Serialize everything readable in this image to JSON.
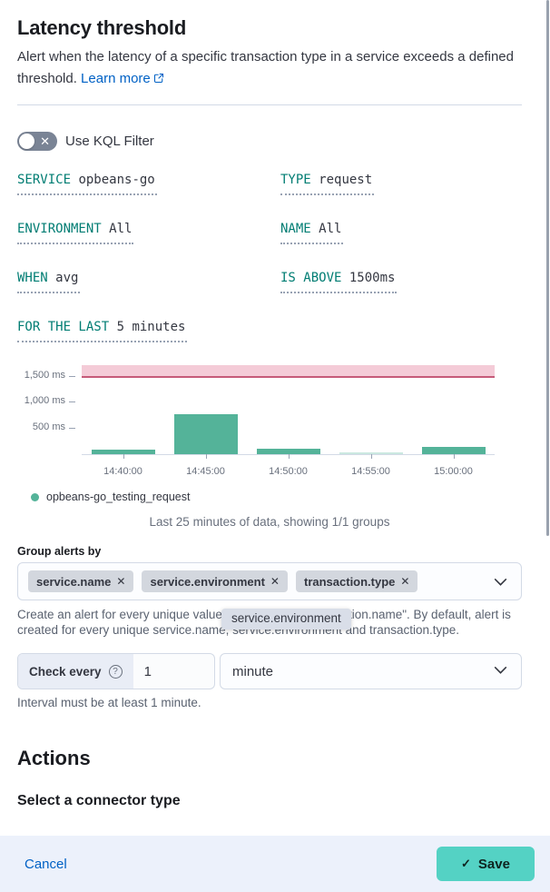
{
  "header": {
    "title": "Latency threshold",
    "description": "Alert when the latency of a specific transaction type in a service exceeds a defined threshold.",
    "learn_more_label": "Learn more"
  },
  "kql_filter": {
    "label": "Use KQL Filter",
    "enabled": false
  },
  "expressions": [
    {
      "label": "SERVICE",
      "value": "opbeans-go"
    },
    {
      "label": "TYPE",
      "value": "request"
    },
    {
      "label": "ENVIRONMENT",
      "value": "All"
    },
    {
      "label": "NAME",
      "value": "All"
    },
    {
      "label": "WHEN",
      "value": "avg"
    },
    {
      "label": "IS ABOVE",
      "value": "1500ms"
    },
    {
      "label": "FOR THE LAST",
      "value": "5 minutes"
    }
  ],
  "chart_data": {
    "type": "bar",
    "categories": [
      "14:40:00",
      "14:45:00",
      "14:50:00",
      "14:55:00",
      "15:00:00"
    ],
    "series": [
      {
        "name": "opbeans-go_testing_request",
        "values": [
          85,
          760,
          100,
          40,
          140
        ]
      }
    ],
    "muted_index": 3,
    "unit": "ms",
    "ylabel": "",
    "xlabel": "",
    "ylim": [
      0,
      1690
    ],
    "grid": false,
    "legend_position": "bottom",
    "threshold": {
      "value": 1500,
      "label": "1,500 ms"
    },
    "yticks": [
      {
        "value": 1500,
        "label": "1,500 ms"
      },
      {
        "value": 1000,
        "label": "1,000 ms"
      },
      {
        "value": 500,
        "label": "500 ms"
      }
    ],
    "colors": {
      "bar": "#54B399",
      "threshold_line": "#C65B79",
      "threshold_band": "#F4CBD7",
      "axis": "#D3DAE6",
      "tick": "#98A2B3",
      "tick_text": "#69707D"
    }
  },
  "legend": {
    "series": "opbeans-go_testing_request",
    "dot_color": "#54B399"
  },
  "chart_caption": "Last 25 minutes of data, showing 1/1 groups",
  "group_alerts": {
    "label": "Group alerts by",
    "badges": [
      "service.name",
      "service.environment",
      "transaction.type"
    ],
    "remove_glyph": "✕",
    "help_text_pre": "Create an alert for every unique value. For example: \"transaction.name\". By default, alert is",
    "help_text_post": "created for every unique service.name, service.environment and transaction.type.",
    "tooltip": "service.environment"
  },
  "schedule": {
    "prepend_label": "Check every",
    "help_glyph": "?",
    "interval_value": "1",
    "unit_value": "minute",
    "hint": "Interval must be at least 1 minute."
  },
  "actions": {
    "title": "Actions",
    "subtitle": "Select a connector type"
  },
  "footer": {
    "cancel_label": "Cancel",
    "save_label": "Save",
    "save_check": "✓",
    "save_color": "#54D2C4",
    "link_color": "#0061C5"
  }
}
